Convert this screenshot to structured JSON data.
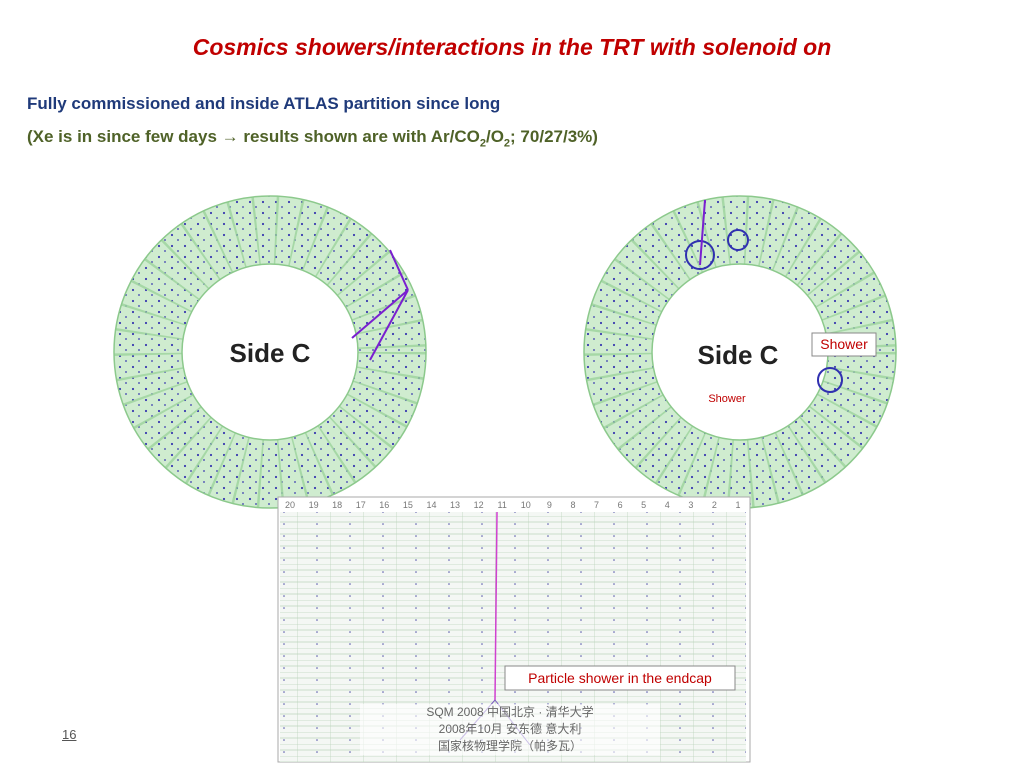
{
  "header": {
    "title": "Cosmics showers/interactions in the TRT with solenoid on"
  },
  "body": {
    "line1": "Fully commissioned and inside ATLAS partition since long",
    "line2": {
      "before": "(Xe is in since few days → results shown are with Ar/CO",
      "sub1": "2",
      "mid": "/O",
      "sub2": "2",
      "after": "; 70/27/3%)"
    }
  },
  "figures": {
    "left_ring": {
      "label": "Side C"
    },
    "right_ring": {
      "label": "Side C",
      "inner_label": "Shower",
      "callout": "Shower"
    },
    "barrel": {
      "columns": [
        20,
        19,
        18,
        17,
        16,
        15,
        14,
        13,
        12,
        11,
        10,
        9,
        8,
        7,
        6,
        5,
        4,
        3,
        2,
        1
      ],
      "callout": "Particle shower in the endcap"
    }
  },
  "footer": {
    "page": "16",
    "line1": "SQM 2008   中国北京 · 清华大学",
    "line2": "2008年10月   安东德   意大利",
    "line3": "国家核物理学院（帕多瓦）"
  }
}
